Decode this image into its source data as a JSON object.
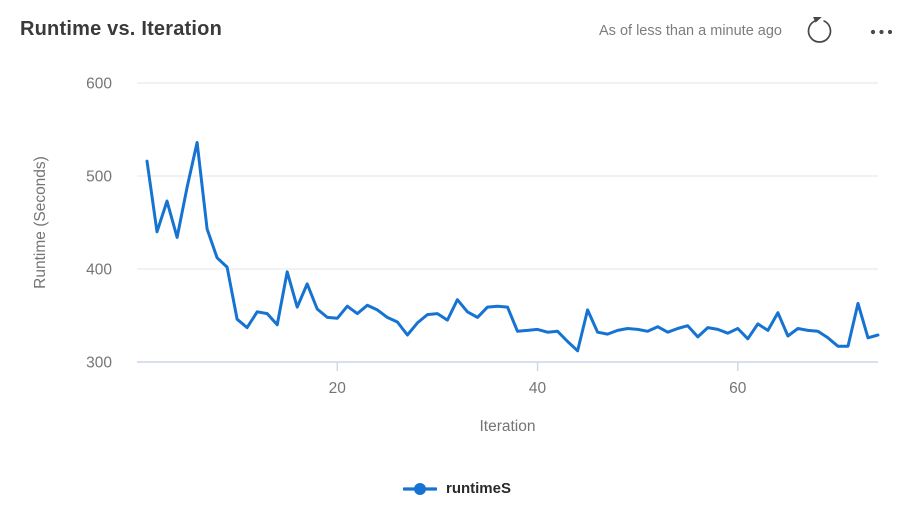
{
  "header": {
    "title": "Runtime vs. Iteration",
    "freshness": "As of less than a minute ago"
  },
  "colors": {
    "line": "#1673d1",
    "title_text": "#3b3a39",
    "freshness_text": "#7f7d7b",
    "tick_text": "#757575",
    "gridline": "#e6e6e6",
    "axis_line": "#ccd6eb",
    "icon": "#4a4845",
    "legend_text": "#2b2a29"
  },
  "chart_data": {
    "type": "line",
    "title": "Runtime vs. Iteration",
    "xlabel": "Iteration",
    "ylabel": "Runtime (Seconds)",
    "xlim": [
      0,
      74
    ],
    "ylim": [
      300,
      600
    ],
    "x_ticks": [
      20,
      40,
      60
    ],
    "y_ticks": [
      300,
      400,
      500,
      600
    ],
    "grid": "horizontal",
    "legend": {
      "position": "bottom",
      "entries": [
        "runtimeS"
      ]
    },
    "series": [
      {
        "name": "runtimeS",
        "x": [
          1,
          2,
          3,
          4,
          5,
          6,
          7,
          8,
          9,
          10,
          11,
          12,
          13,
          14,
          15,
          16,
          17,
          18,
          19,
          20,
          21,
          22,
          23,
          24,
          25,
          26,
          27,
          28,
          29,
          30,
          31,
          32,
          33,
          34,
          35,
          36,
          37,
          38,
          39,
          40,
          41,
          42,
          43,
          44,
          45,
          46,
          47,
          48,
          49,
          50,
          51,
          52,
          53,
          54,
          55,
          56,
          57,
          58,
          59,
          60,
          61,
          62,
          63,
          64,
          65,
          66,
          67,
          68,
          69,
          70,
          71,
          72,
          73,
          74
        ],
        "y": [
          516,
          440,
          473,
          434,
          488,
          536,
          443,
          412,
          402,
          346,
          337,
          354,
          352,
          340,
          397,
          359,
          384,
          357,
          348,
          347,
          360,
          352,
          361,
          356,
          348,
          343,
          329,
          342,
          351,
          352,
          345,
          367,
          354,
          348,
          359,
          360,
          359,
          333,
          334,
          335,
          332,
          333,
          322,
          312,
          356,
          332,
          330,
          334,
          336,
          335,
          333,
          338,
          332,
          336,
          339,
          327,
          337,
          335,
          331,
          336,
          325,
          341,
          334,
          353,
          328,
          336,
          334,
          333,
          326,
          317,
          317,
          363,
          326,
          329
        ]
      }
    ]
  }
}
